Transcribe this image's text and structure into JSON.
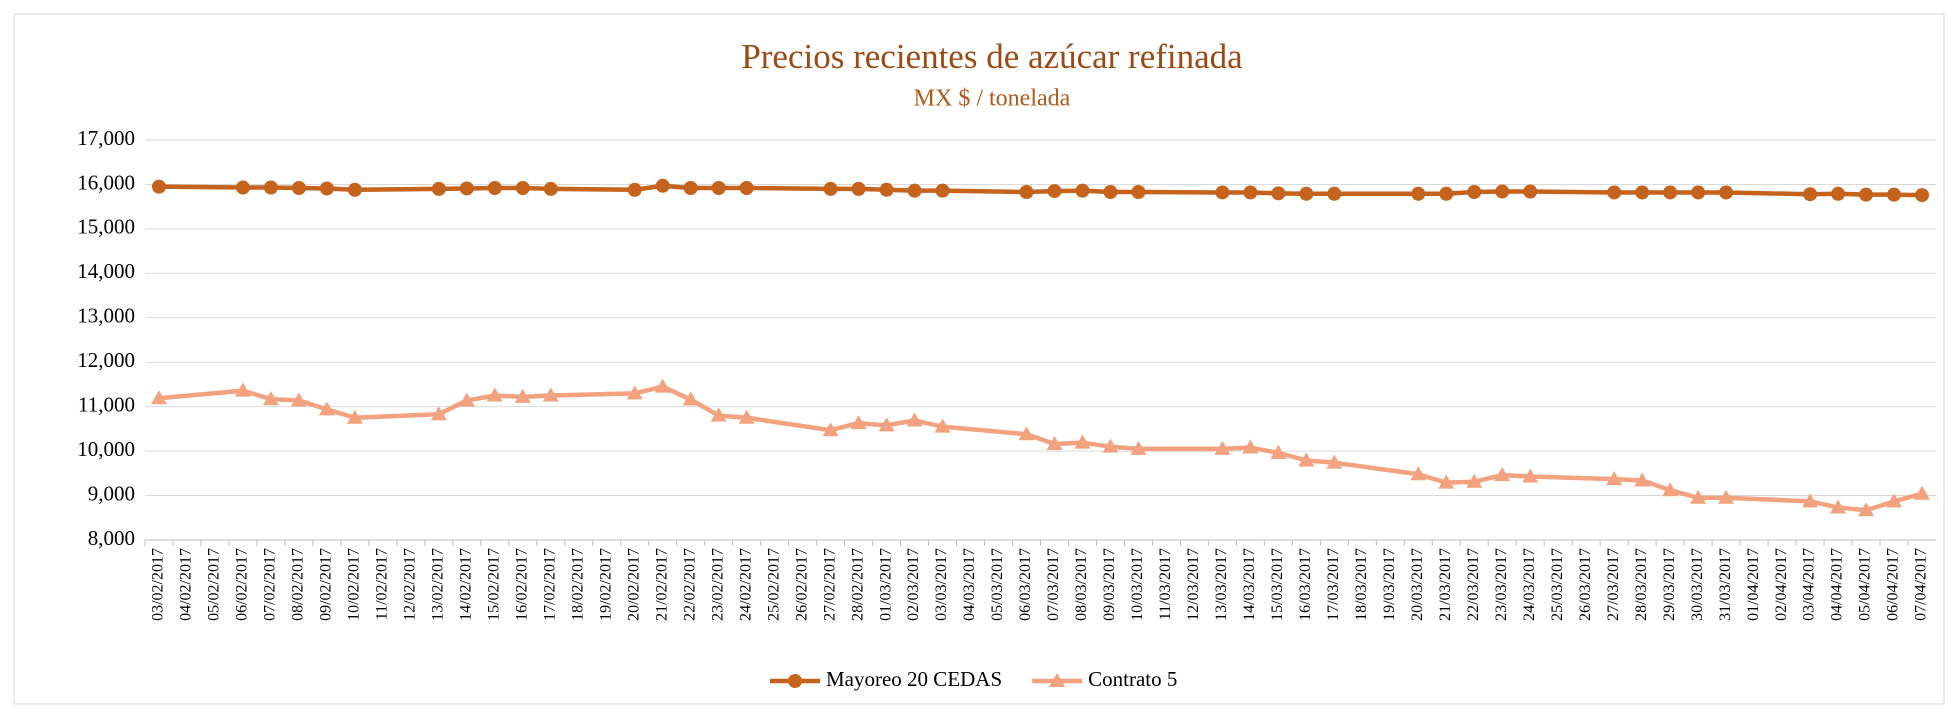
{
  "chart_data": {
    "type": "line",
    "title": "Precios recientes de azúcar refinada",
    "subtitle": "MX $ / tonelada",
    "x": [
      "03/02/2017",
      "06/02/2017",
      "07/02/2017",
      "08/02/2017",
      "09/02/2017",
      "10/02/2017",
      "13/02/2017",
      "14/02/2017",
      "15/02/2017",
      "16/02/2017",
      "17/02/2017",
      "20/02/2017",
      "21/02/2017",
      "22/02/2017",
      "23/02/2017",
      "24/02/2017",
      "27/02/2017",
      "28/02/2017",
      "01/03/2017",
      "02/03/2017",
      "03/03/2017",
      "06/03/2017",
      "07/03/2017",
      "08/03/2017",
      "09/03/2017",
      "10/03/2017",
      "13/03/2017",
      "14/03/2017",
      "15/03/2017",
      "16/03/2017",
      "17/03/2017",
      "20/03/2017",
      "21/03/2017",
      "22/03/2017",
      "23/03/2017",
      "24/03/2017",
      "27/03/2017",
      "28/03/2017",
      "29/03/2017",
      "30/03/2017",
      "31/03/2017",
      "03/04/2017",
      "04/04/2017",
      "05/04/2017",
      "06/04/2017",
      "07/04/2017"
    ],
    "xticks": [
      "03/02/2017",
      "04/02/2017",
      "05/02/2017",
      "06/02/2017",
      "07/02/2017",
      "08/02/2017",
      "09/02/2017",
      "10/02/2017",
      "11/02/2017",
      "12/02/2017",
      "13/02/2017",
      "14/02/2017",
      "15/02/2017",
      "16/02/2017",
      "17/02/2017",
      "18/02/2017",
      "19/02/2017",
      "20/02/2017",
      "21/02/2017",
      "22/02/2017",
      "23/02/2017",
      "24/02/2017",
      "25/02/2017",
      "26/02/2017",
      "27/02/2017",
      "28/02/2017",
      "01/03/2017",
      "02/03/2017",
      "03/03/2017",
      "04/03/2017",
      "05/03/2017",
      "06/03/2017",
      "07/03/2017",
      "08/03/2017",
      "09/03/2017",
      "10/03/2017",
      "11/03/2017",
      "12/03/2017",
      "13/03/2017",
      "14/03/2017",
      "15/03/2017",
      "16/03/2017",
      "17/03/2017",
      "18/03/2017",
      "19/03/2017",
      "20/03/2017",
      "21/03/2017",
      "22/03/2017",
      "23/03/2017",
      "24/03/2017",
      "25/03/2017",
      "26/03/2017",
      "27/03/2017",
      "28/03/2017",
      "29/03/2017",
      "30/03/2017",
      "31/03/2017",
      "01/04/2017",
      "02/04/2017",
      "03/04/2017",
      "04/04/2017",
      "05/04/2017",
      "06/04/2017",
      "07/04/2017"
    ],
    "series": [
      {
        "name": "Mayoreo 20 CEDAS",
        "color": "#c5621c",
        "marker": "circle",
        "values": [
          15950,
          15930,
          15930,
          15920,
          15910,
          15880,
          15900,
          15910,
          15920,
          15920,
          15900,
          15880,
          15970,
          15920,
          15920,
          15920,
          15900,
          15900,
          15880,
          15860,
          15860,
          15830,
          15850,
          15860,
          15830,
          15830,
          15820,
          15820,
          15800,
          15790,
          15790,
          15790,
          15790,
          15830,
          15840,
          15840,
          15820,
          15820,
          15820,
          15820,
          15820,
          15780,
          15790,
          15770,
          15770,
          15760
        ]
      },
      {
        "name": "Contrato 5",
        "color": "#f2a27e",
        "marker": "triangle",
        "values": [
          11190,
          11360,
          11170,
          11140,
          10940,
          10750,
          10830,
          11140,
          11250,
          11220,
          11250,
          11300,
          11450,
          11160,
          10800,
          10750,
          10470,
          10630,
          10580,
          10690,
          10550,
          10380,
          10160,
          10190,
          10100,
          10050,
          10050,
          10080,
          9960,
          9790,
          9740,
          9480,
          9290,
          9310,
          9460,
          9430,
          9370,
          9340,
          9120,
          8950,
          8950,
          8870,
          8730,
          8670,
          8870,
          9040
        ]
      }
    ],
    "ylim": [
      8000,
      17000
    ],
    "yticks": [
      {
        "value": 8000,
        "label": "8,000"
      },
      {
        "value": 9000,
        "label": "9,000"
      },
      {
        "value": 10000,
        "label": "10,000"
      },
      {
        "value": 11000,
        "label": "11,000"
      },
      {
        "value": 12000,
        "label": "12,000"
      },
      {
        "value": 13000,
        "label": "13,000"
      },
      {
        "value": 14000,
        "label": "14,000"
      },
      {
        "value": 15000,
        "label": "15,000"
      },
      {
        "value": 16000,
        "label": "16,000"
      },
      {
        "value": 17000,
        "label": "17,000"
      }
    ],
    "grid": true,
    "legend": "bottom"
  }
}
